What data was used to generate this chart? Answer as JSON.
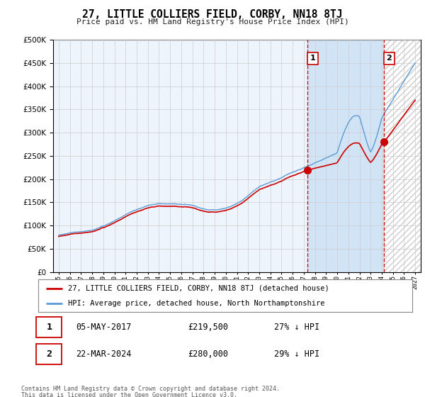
{
  "title": "27, LITTLE COLLIERS FIELD, CORBY, NN18 8TJ",
  "subtitle": "Price paid vs. HM Land Registry's House Price Index (HPI)",
  "legend_line1": "27, LITTLE COLLIERS FIELD, CORBY, NN18 8TJ (detached house)",
  "legend_line2": "HPI: Average price, detached house, North Northamptonshire",
  "table_row1": [
    "1",
    "05-MAY-2017",
    "£219,500",
    "27% ↓ HPI"
  ],
  "table_row2": [
    "2",
    "22-MAR-2024",
    "£280,000",
    "29% ↓ HPI"
  ],
  "footnote1": "Contains HM Land Registry data © Crown copyright and database right 2024.",
  "footnote2": "This data is licensed under the Open Government Licence v3.0.",
  "hpi_color": "#5b9bd5",
  "price_color": "#cc0000",
  "vline_color": "#cc0000",
  "background_color": "#ffffff",
  "grid_color": "#cccccc",
  "plot_bg_color": "#eef4fb",
  "shade_color": "#d0e4f5",
  "hatch_color": "#cccccc",
  "ylim": [
    0,
    500000
  ],
  "yticks": [
    0,
    50000,
    100000,
    150000,
    200000,
    250000,
    300000,
    350000,
    400000,
    450000,
    500000
  ],
  "sale1_x": 2017.35,
  "sale2_x": 2024.22,
  "sale1_y": 219500,
  "sale2_y": 280000,
  "xmin": 1995,
  "xmax": 2027
}
